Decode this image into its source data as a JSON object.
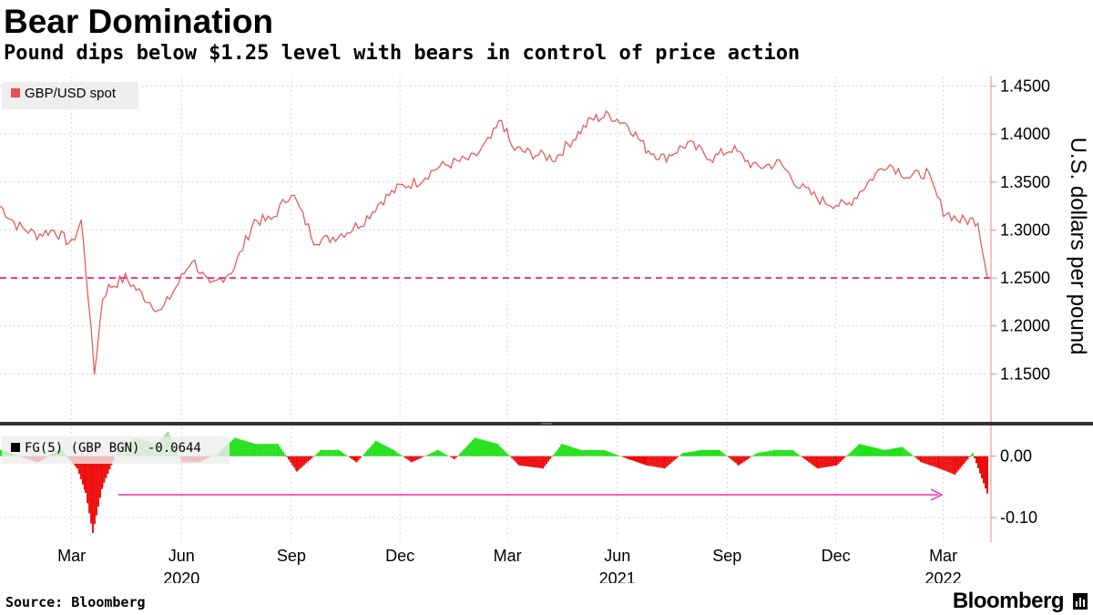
{
  "title": "Bear Domination",
  "subtitle": "Pound dips below $1.25 level with bears in control of price action",
  "source": "Source: Bloomberg",
  "brand": "Bloomberg",
  "colors": {
    "price_line": "#e8504f",
    "threshold": "#ee2f8f",
    "positive": "#22e01a",
    "positive_light": "#8ce68a",
    "negative": "#ee0b0b",
    "arrow": "#ee2faf",
    "axis": "#f08080",
    "divider": "#333333"
  },
  "chart_data": [
    {
      "type": "line",
      "legend": "GBP/USD spot",
      "ylabel": "U.S. dollars per pound",
      "ylim": [
        1.1,
        1.46
      ],
      "yticks": [
        "1.4500",
        "1.4000",
        "1.3500",
        "1.3000",
        "1.2500",
        "1.2000",
        "1.1500"
      ],
      "ytick_values": [
        1.45,
        1.4,
        1.35,
        1.3,
        1.25,
        1.2,
        1.15
      ],
      "threshold": 1.25,
      "xrange": [
        "2020-01-01",
        "2022-04-10"
      ],
      "grid": true,
      "legend_position": "top-left",
      "x": [
        "2020-01-01",
        "2020-01-15",
        "2020-02-01",
        "2020-02-15",
        "2020-03-01",
        "2020-03-09",
        "2020-03-15",
        "2020-03-20",
        "2020-03-27",
        "2020-04-01",
        "2020-04-15",
        "2020-05-01",
        "2020-05-15",
        "2020-06-01",
        "2020-06-10",
        "2020-06-25",
        "2020-07-15",
        "2020-08-01",
        "2020-08-15",
        "2020-09-01",
        "2020-09-20",
        "2020-10-01",
        "2020-10-20",
        "2020-11-01",
        "2020-11-15",
        "2020-12-01",
        "2020-12-15",
        "2021-01-01",
        "2021-01-15",
        "2021-02-01",
        "2021-02-15",
        "2021-02-24",
        "2021-03-05",
        "2021-03-20",
        "2021-04-10",
        "2021-04-25",
        "2021-05-10",
        "2021-05-25",
        "2021-06-10",
        "2021-06-25",
        "2021-07-10",
        "2021-07-30",
        "2021-08-20",
        "2021-09-05",
        "2021-09-25",
        "2021-10-15",
        "2021-11-01",
        "2021-11-20",
        "2021-12-10",
        "2022-01-01",
        "2022-01-13",
        "2022-02-01",
        "2022-02-15",
        "2022-03-01",
        "2022-03-15",
        "2022-03-30",
        "2022-04-07"
      ],
      "y": [
        1.325,
        1.305,
        1.295,
        1.3,
        1.285,
        1.31,
        1.23,
        1.15,
        1.23,
        1.24,
        1.25,
        1.23,
        1.215,
        1.25,
        1.27,
        1.24,
        1.26,
        1.31,
        1.31,
        1.34,
        1.29,
        1.29,
        1.3,
        1.31,
        1.33,
        1.345,
        1.35,
        1.365,
        1.37,
        1.375,
        1.395,
        1.415,
        1.385,
        1.38,
        1.375,
        1.395,
        1.415,
        1.42,
        1.41,
        1.385,
        1.375,
        1.39,
        1.375,
        1.385,
        1.365,
        1.37,
        1.345,
        1.33,
        1.325,
        1.355,
        1.37,
        1.355,
        1.36,
        1.32,
        1.31,
        1.31,
        1.25
      ]
    },
    {
      "type": "bar",
      "legend": "FG(5) (GBP BGN) -0.0644",
      "yticks": [
        "0.00",
        "-0.10"
      ],
      "ytick_values": [
        0,
        -0.1
      ],
      "ylim": [
        -0.14,
        0.05
      ],
      "xrange": [
        "2020-01-01",
        "2022-04-10"
      ],
      "xticks": [
        "Mar",
        "Jun",
        "Sep",
        "Dec",
        "Mar",
        "Jun",
        "Sep",
        "Dec",
        "Mar"
      ],
      "xtick_dates": [
        "2020-03-01",
        "2020-06-01",
        "2020-09-01",
        "2020-12-01",
        "2021-03-01",
        "2021-06-01",
        "2021-09-01",
        "2021-12-01",
        "2022-03-01"
      ],
      "years": [
        "2020",
        "2021",
        "2022"
      ],
      "year_dates": [
        "2020-06-01",
        "2021-06-01",
        "2022-03-01"
      ],
      "x": [
        "2020-01-01",
        "2020-02-01",
        "2020-02-20",
        "2020-03-05",
        "2020-03-12",
        "2020-03-18",
        "2020-03-26",
        "2020-04-10",
        "2020-04-25",
        "2020-05-10",
        "2020-05-20",
        "2020-06-01",
        "2020-06-15",
        "2020-07-01",
        "2020-07-15",
        "2020-08-01",
        "2020-08-20",
        "2020-09-05",
        "2020-09-25",
        "2020-10-10",
        "2020-10-25",
        "2020-11-10",
        "2020-11-25",
        "2020-12-10",
        "2021-01-01",
        "2021-01-15",
        "2021-02-01",
        "2021-02-20",
        "2021-03-10",
        "2021-03-30",
        "2021-04-15",
        "2021-05-01",
        "2021-05-20",
        "2021-06-10",
        "2021-06-25",
        "2021-07-10",
        "2021-07-25",
        "2021-08-10",
        "2021-08-25",
        "2021-09-10",
        "2021-09-25",
        "2021-10-10",
        "2021-10-25",
        "2021-11-15",
        "2021-12-01",
        "2021-12-20",
        "2022-01-10",
        "2022-01-25",
        "2022-02-10",
        "2022-02-25",
        "2022-03-10",
        "2022-03-25",
        "2022-04-07"
      ],
      "y": [
        0.01,
        -0.01,
        0.012,
        -0.02,
        -0.06,
        -0.125,
        -0.05,
        0.02,
        0.03,
        0.02,
        0.04,
        -0.01,
        -0.01,
        0.005,
        0.03,
        0.02,
        0.02,
        -0.025,
        0.01,
        0.01,
        -0.01,
        0.025,
        0.01,
        -0.01,
        0.01,
        -0.005,
        0.03,
        0.02,
        -0.015,
        -0.02,
        0.02,
        0.01,
        0.01,
        -0.005,
        -0.015,
        -0.02,
        0.005,
        0.01,
        0.01,
        -0.015,
        0.005,
        0.01,
        0.01,
        -0.02,
        -0.015,
        0.02,
        0.01,
        0.015,
        -0.01,
        -0.02,
        -0.03,
        0.005,
        -0.065
      ],
      "annotation": "arrow"
    }
  ]
}
